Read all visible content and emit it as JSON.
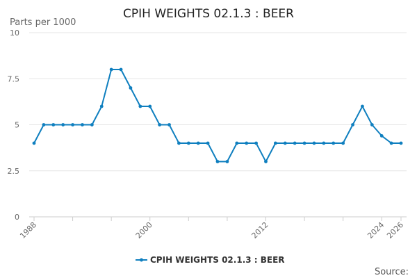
{
  "chart_data": {
    "type": "line",
    "title": "CPIH WEIGHTS 02.1.3 : BEER",
    "ylabel": "Parts per 1000",
    "xlabel": "",
    "ylim": [
      0,
      10
    ],
    "yticks": [
      "0",
      "2.5",
      "5",
      "7.5",
      "10"
    ],
    "xticks": [
      "1988",
      "2000",
      "2012",
      "2024",
      "2026"
    ],
    "grid": true,
    "legend_position": "bottom-center",
    "series": [
      {
        "name": "CPIH WEIGHTS 02.1.3 : BEER",
        "color": "#0f7fbf",
        "x": [
          1988,
          1989,
          1990,
          1991,
          1992,
          1993,
          1994,
          1995,
          1996,
          1997,
          1998,
          1999,
          2000,
          2001,
          2002,
          2003,
          2004,
          2005,
          2006,
          2007,
          2008,
          2009,
          2010,
          2011,
          2012,
          2013,
          2014,
          2015,
          2016,
          2017,
          2018,
          2019,
          2020,
          2021,
          2022,
          2023,
          2024,
          2025,
          2026
        ],
        "values": [
          4,
          5,
          5,
          5,
          5,
          5,
          5,
          6,
          8,
          8,
          7,
          6,
          6,
          5,
          5,
          4,
          4,
          4,
          4,
          3,
          3,
          4,
          4,
          4,
          3,
          4,
          4,
          4,
          4,
          4,
          4,
          4,
          4,
          5,
          6,
          5,
          4.4,
          4,
          4
        ]
      }
    ]
  },
  "source_label": "Source:"
}
